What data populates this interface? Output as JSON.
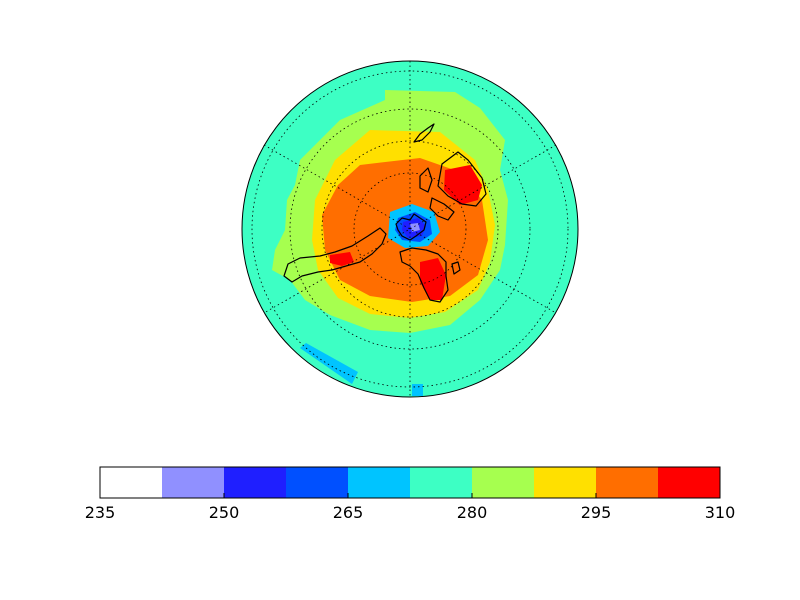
{
  "map": {
    "projection": "polar-stereographic",
    "variable_units": "",
    "fill_zones": [
      {
        "level": 272.5,
        "color": "#3dffc4"
      },
      {
        "level": 280,
        "color": "#a6ff4f"
      },
      {
        "level": 287.5,
        "color": "#ffe000"
      },
      {
        "level": 295,
        "color": "#ff6e00"
      },
      {
        "level": 302.5,
        "color": "#ff0000"
      },
      {
        "level": 265,
        "color": "#00c4ff"
      },
      {
        "level": 257.5,
        "color": "#0050ff"
      },
      {
        "level": 250,
        "color": "#1f1fff"
      },
      {
        "level": 242.5,
        "color": "#9090ff"
      }
    ],
    "coastlines": true,
    "graticule": "dotted"
  },
  "colorbar": {
    "orientation": "horizontal",
    "min": 235,
    "max": 310,
    "step": 7.5,
    "bin_colors": [
      "#ffffff",
      "#9090ff",
      "#1f1fff",
      "#0050ff",
      "#00c4ff",
      "#3dffc4",
      "#a6ff4f",
      "#ffe000",
      "#ff6e00",
      "#ff0000"
    ],
    "ticks": [
      {
        "value": 235,
        "label": "235"
      },
      {
        "value": 250,
        "label": "250"
      },
      {
        "value": 265,
        "label": "265"
      },
      {
        "value": 280,
        "label": "280"
      },
      {
        "value": 295,
        "label": "295"
      },
      {
        "value": 310,
        "label": "310"
      }
    ]
  }
}
